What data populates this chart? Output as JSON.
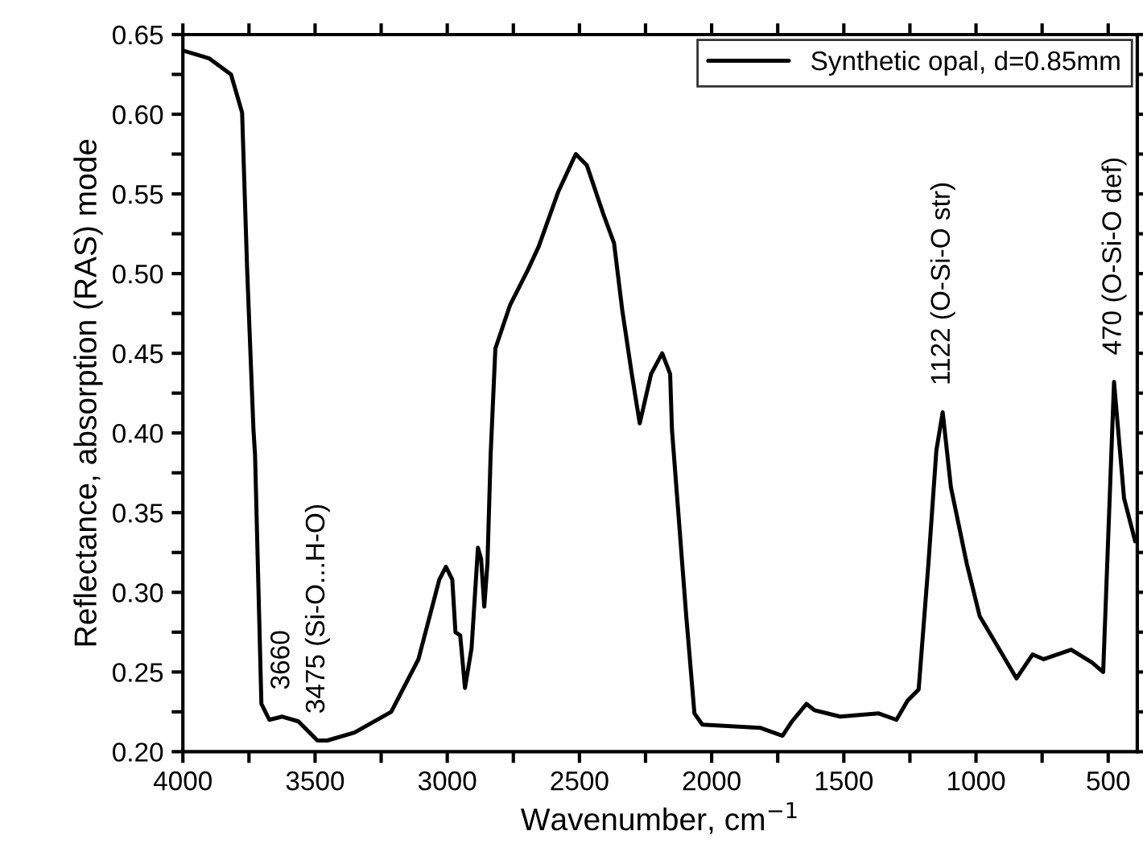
{
  "chart_data": {
    "type": "line",
    "xlabel": "Wavenumber, cm$^{−1}$",
    "ylabel": "Reflectance, absorption (RAS) mode",
    "xlim": [
      4000,
      390
    ],
    "ylim": [
      0.2,
      0.65
    ],
    "xticks": [
      4000,
      {
        "value": 3750,
        "label": null
      },
      3500,
      {
        "value": 3250,
        "label": null
      },
      3000,
      {
        "value": 2750,
        "label": null
      },
      2500,
      {
        "value": 2250,
        "label": null
      },
      2000,
      {
        "value": 1750,
        "label": null
      },
      1500,
      {
        "value": 1250,
        "label": null
      },
      1000,
      {
        "value": 750,
        "label": null
      },
      500
    ],
    "yticks": [
      {
        "value": 0.2,
        "label": "0.20"
      },
      {
        "value": 0.225,
        "label": null
      },
      {
        "value": 0.25,
        "label": "0.25"
      },
      {
        "value": 0.275,
        "label": null
      },
      {
        "value": 0.3,
        "label": "0.30"
      },
      {
        "value": 0.325,
        "label": null
      },
      {
        "value": 0.35,
        "label": "0.35"
      },
      {
        "value": 0.375,
        "label": null
      },
      {
        "value": 0.4,
        "label": "0.40"
      },
      {
        "value": 0.425,
        "label": null
      },
      {
        "value": 0.45,
        "label": "0.45"
      },
      {
        "value": 0.475,
        "label": null
      },
      {
        "value": 0.5,
        "label": "0.50"
      },
      {
        "value": 0.525,
        "label": null
      },
      {
        "value": 0.55,
        "label": "0.55"
      },
      {
        "value": 0.575,
        "label": null
      },
      {
        "value": 0.6,
        "label": "0.60"
      },
      {
        "value": 0.625,
        "label": null
      },
      {
        "value": 0.65,
        "label": "0.65"
      }
    ],
    "grid": false,
    "legend": "top right",
    "marker": "none",
    "line_style": "solid",
    "series": [
      {
        "name": "Synthetic opal, d=0.85mm",
        "color": "#000000",
        "x": [
          4000,
          3900,
          3818,
          3776,
          3757,
          3733,
          3727,
          3703,
          3673,
          3624,
          3563,
          3491,
          3454,
          3351,
          3212,
          3109,
          3030,
          3005,
          2981,
          2969,
          2951,
          2933,
          2908,
          2884,
          2872,
          2860,
          2848,
          2836,
          2818,
          2763,
          2696,
          2654,
          2581,
          2514,
          2472,
          2411,
          2369,
          2338,
          2302,
          2272,
          2229,
          2187,
          2157,
          2150,
          2096,
          2065,
          2035,
          1817,
          1732,
          1696,
          1641,
          1611,
          1514,
          1368,
          1301,
          1259,
          1217,
          1180,
          1150,
          1126,
          1095,
          1035,
          986,
          925,
          847,
          786,
          744,
          640,
          562,
          519,
          478,
          440,
          398
        ],
        "values": [
          0.64,
          0.635,
          0.625,
          0.601,
          0.503,
          0.402,
          0.386,
          0.23,
          0.22,
          0.222,
          0.219,
          0.207,
          0.207,
          0.212,
          0.225,
          0.258,
          0.308,
          0.316,
          0.308,
          0.275,
          0.273,
          0.24,
          0.265,
          0.328,
          0.321,
          0.291,
          0.318,
          0.386,
          0.453,
          0.48,
          0.502,
          0.517,
          0.551,
          0.575,
          0.568,
          0.538,
          0.519,
          0.477,
          0.437,
          0.406,
          0.437,
          0.45,
          0.437,
          0.402,
          0.285,
          0.224,
          0.217,
          0.215,
          0.21,
          0.219,
          0.23,
          0.226,
          0.222,
          0.224,
          0.22,
          0.232,
          0.239,
          0.318,
          0.389,
          0.413,
          0.366,
          0.318,
          0.285,
          0.268,
          0.246,
          0.261,
          0.258,
          0.264,
          0.256,
          0.25,
          0.432,
          0.359,
          0.332
        ]
      }
    ],
    "annotations": [
      {
        "text": "3660",
        "x": 3624,
        "y": 0.222
      },
      {
        "text": "3475 (Si-O...H-O)",
        "x": 3491,
        "y": 0.207
      },
      {
        "text": "1122 (O-Si-O str)",
        "x": 1126,
        "y": 0.413
      },
      {
        "text": "470 (O-Si-O def)",
        "x": 478,
        "y": 0.432
      }
    ]
  }
}
